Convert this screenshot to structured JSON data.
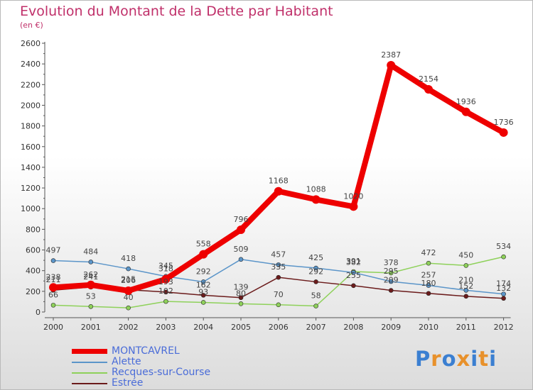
{
  "title": "Evolution du Montant de la Dette par Habitant",
  "unit_label": "(en €)",
  "logo_text": "Proxiti",
  "chart_data": {
    "type": "line",
    "x": [
      "2000",
      "2001",
      "2002",
      "2003",
      "2004",
      "2005",
      "2006",
      "2007",
      "2008",
      "2009",
      "2010",
      "2011",
      "2012"
    ],
    "ylim": [
      0,
      2600
    ],
    "yticks": [
      0,
      200,
      400,
      600,
      800,
      1000,
      1200,
      1400,
      1600,
      1800,
      2000,
      2200,
      2400,
      2600
    ],
    "grid": false,
    "legend_position": "bottom-left",
    "series": [
      {
        "name": "MONTCAVREL",
        "color": "#ee0000",
        "values": [
          238,
          262,
          206,
          318,
          558,
          796,
          1168,
          1088,
          1020,
          2387,
          2154,
          1936,
          1736
        ]
      },
      {
        "name": "Alette",
        "color": "#5b95c9",
        "values": [
          497,
          484,
          418,
          345,
          292,
          509,
          457,
          425,
          382,
          295,
          257,
          210,
          174
        ]
      },
      {
        "name": "Recques-sur-Course",
        "color": "#8ed15a",
        "values": [
          66,
          53,
          40,
          102,
          93,
          80,
          70,
          58,
          391,
          378,
          472,
          450,
          534
        ]
      },
      {
        "name": "Estrée",
        "color": "#6b1b1b",
        "values": [
          211,
          241,
          215,
          193,
          162,
          139,
          335,
          292,
          255,
          209,
          180,
          152,
          132
        ]
      }
    ]
  }
}
